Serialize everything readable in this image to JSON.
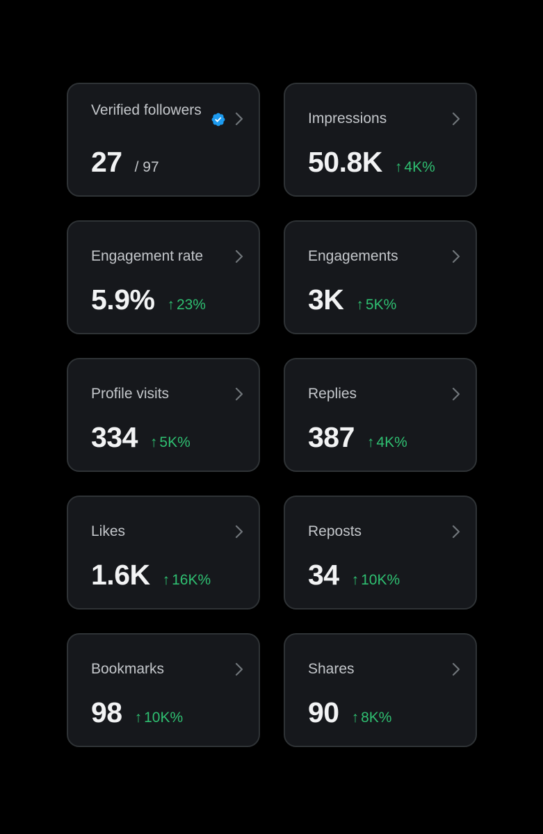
{
  "colors": {
    "background": "#000000",
    "card_background": "#16181c",
    "card_border": "#2f3336",
    "positive": "#2fbf71",
    "verified_badge": "#1d9bf0"
  },
  "cards": [
    {
      "label": "Verified followers",
      "value": "27",
      "total": "/ 97",
      "verified_icon": "verified-badge-icon"
    },
    {
      "label": "Impressions",
      "value": "50.8K",
      "change": "4K%"
    },
    {
      "label": "Engagement rate",
      "value": "5.9%",
      "change": "23%"
    },
    {
      "label": "Engagements",
      "value": "3K",
      "change": "5K%"
    },
    {
      "label": "Profile visits",
      "value": "334",
      "change": "5K%"
    },
    {
      "label": "Replies",
      "value": "387",
      "change": "4K%"
    },
    {
      "label": "Likes",
      "value": "1.6K",
      "change": "16K%"
    },
    {
      "label": "Reposts",
      "value": "34",
      "change": "10K%"
    },
    {
      "label": "Bookmarks",
      "value": "98",
      "change": "10K%"
    },
    {
      "label": "Shares",
      "value": "90",
      "change": "8K%"
    }
  ],
  "icons": {
    "arrow": "↑",
    "chevron": "chevron-right-icon"
  }
}
